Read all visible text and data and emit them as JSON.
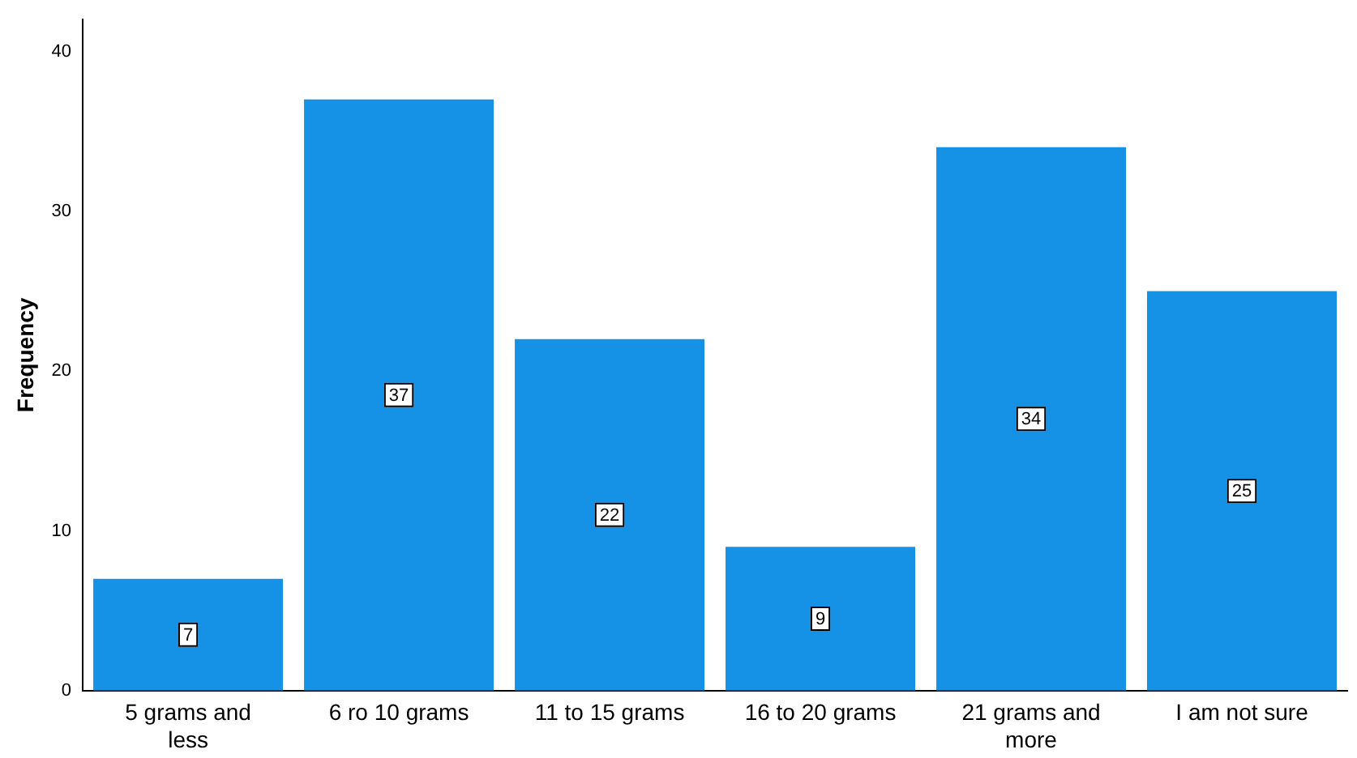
{
  "chart_data": {
    "type": "bar",
    "ylabel": "Frequency",
    "categories": [
      "5 grams and less",
      "6 ro 10 grams",
      "11 to 15 grams",
      "16 to 20 grams",
      "21 grams and more",
      "I am not sure"
    ],
    "values": [
      7,
      37,
      22,
      9,
      34,
      25
    ],
    "color": "#1592e6",
    "ylim": [
      0,
      42
    ],
    "yticks": [
      0,
      10,
      20,
      30,
      40
    ],
    "grid": false,
    "legend": false,
    "data_labels": true
  }
}
